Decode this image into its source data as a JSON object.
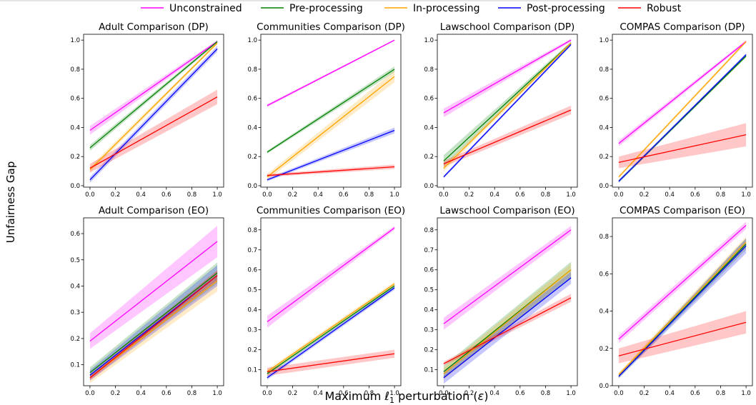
{
  "figure": {
    "ylabel": "Unfairness Gap",
    "xlabel_prefix": "Maximum ",
    "xlabel_symbol": "ℓ",
    "xlabel_sub": "1",
    "xlabel_suffix": " perturbation (",
    "xlabel_eps": "ε",
    "xlabel_close": ")"
  },
  "legend": [
    {
      "name": "Unconstrained",
      "color": "#ff00ff"
    },
    {
      "name": "Pre-processing",
      "color": "#008000"
    },
    {
      "name": "In-processing",
      "color": "#ffa500"
    },
    {
      "name": "Post-processing",
      "color": "#0000ff"
    },
    {
      "name": "Robust",
      "color": "#ff0000"
    }
  ],
  "chart_data": [
    {
      "type": "line",
      "title": "Adult Comparison (DP)",
      "x": [
        0,
        1
      ],
      "xlim": [
        -0.05,
        1.05
      ],
      "ylim": [
        -0.01,
        1.04
      ],
      "xticks": [
        "0.0",
        "0.2",
        "0.4",
        "0.6",
        "0.8",
        "1.0"
      ],
      "xtick_values": [
        0,
        0.2,
        0.4,
        0.6,
        0.8,
        1.0
      ],
      "yticks": [
        "0.0",
        "0.2",
        "0.4",
        "0.6",
        "0.8",
        "1.0"
      ],
      "ytick_values": [
        0,
        0.2,
        0.4,
        0.6,
        0.8,
        1.0
      ],
      "series": [
        {
          "name": "Unconstrained",
          "values": [
            0.38,
            0.99
          ],
          "band": [
            0.03,
            0.01
          ]
        },
        {
          "name": "Pre-processing",
          "values": [
            0.26,
            0.99
          ],
          "band": [
            0.02,
            0.01
          ]
        },
        {
          "name": "In-processing",
          "values": [
            0.11,
            0.98
          ],
          "band": [
            0.02,
            0.01
          ]
        },
        {
          "name": "Post-processing",
          "values": [
            0.04,
            0.94
          ],
          "band": [
            0.02,
            0.02
          ]
        },
        {
          "name": "Robust",
          "values": [
            0.12,
            0.61
          ],
          "band": [
            0.03,
            0.05
          ]
        }
      ]
    },
    {
      "type": "line",
      "title": "Communities Comparison (DP)",
      "x": [
        0,
        1
      ],
      "xlim": [
        -0.05,
        1.05
      ],
      "ylim": [
        -0.01,
        1.04
      ],
      "xticks": [
        "0.0",
        "0.2",
        "0.4",
        "0.6",
        "0.8",
        "1.0"
      ],
      "xtick_values": [
        0,
        0.2,
        0.4,
        0.6,
        0.8,
        1.0
      ],
      "yticks": [
        "0.0",
        "0.2",
        "0.4",
        "0.6",
        "0.8",
        "1.0"
      ],
      "ytick_values": [
        0,
        0.2,
        0.4,
        0.6,
        0.8,
        1.0
      ],
      "series": [
        {
          "name": "Unconstrained",
          "values": [
            0.55,
            1.0
          ],
          "band": [
            0.01,
            0.005
          ]
        },
        {
          "name": "Pre-processing",
          "values": [
            0.23,
            0.8
          ],
          "band": [
            0.01,
            0.02
          ]
        },
        {
          "name": "In-processing",
          "values": [
            0.06,
            0.75
          ],
          "band": [
            0.02,
            0.04
          ]
        },
        {
          "name": "Post-processing",
          "values": [
            0.04,
            0.38
          ],
          "band": [
            0.01,
            0.02
          ]
        },
        {
          "name": "Robust",
          "values": [
            0.07,
            0.13
          ],
          "band": [
            0.01,
            0.015
          ]
        }
      ]
    },
    {
      "type": "line",
      "title": "Lawschool Comparison (DP)",
      "x": [
        0,
        1
      ],
      "xlim": [
        -0.05,
        1.05
      ],
      "ylim": [
        -0.01,
        1.04
      ],
      "xticks": [
        "0.0",
        "0.2",
        "0.4",
        "0.6",
        "0.8",
        "1.0"
      ],
      "xtick_values": [
        0,
        0.2,
        0.4,
        0.6,
        0.8,
        1.0
      ],
      "yticks": [
        "0.0",
        "0.2",
        "0.4",
        "0.6",
        "0.8",
        "1.0"
      ],
      "ytick_values": [
        0,
        0.2,
        0.4,
        0.6,
        0.8,
        1.0
      ],
      "series": [
        {
          "name": "Unconstrained",
          "values": [
            0.5,
            1.0
          ],
          "band": [
            0.03,
            0.01
          ]
        },
        {
          "name": "Pre-processing",
          "values": [
            0.17,
            0.98
          ],
          "band": [
            0.04,
            0.01
          ]
        },
        {
          "name": "In-processing",
          "values": [
            0.12,
            0.98
          ],
          "band": [
            0.02,
            0.01
          ]
        },
        {
          "name": "Post-processing",
          "values": [
            0.06,
            0.97
          ],
          "band": [
            0.01,
            0.01
          ]
        },
        {
          "name": "Robust",
          "values": [
            0.15,
            0.52
          ],
          "band": [
            0.02,
            0.03
          ]
        }
      ]
    },
    {
      "type": "line",
      "title": "COMPAS Comparison (DP)",
      "x": [
        0,
        1
      ],
      "xlim": [
        -0.05,
        1.05
      ],
      "ylim": [
        -0.01,
        1.04
      ],
      "xticks": [
        "0.0",
        "0.2",
        "0.4",
        "0.6",
        "0.8",
        "1.0"
      ],
      "xtick_values": [
        0,
        0.2,
        0.4,
        0.6,
        0.8,
        1.0
      ],
      "yticks": [
        "0.0",
        "0.2",
        "0.4",
        "0.6",
        "0.8",
        "1.0"
      ],
      "ytick_values": [
        0,
        0.2,
        0.4,
        0.6,
        0.8,
        1.0
      ],
      "series": [
        {
          "name": "Unconstrained",
          "values": [
            0.29,
            0.99
          ],
          "band": [
            0.02,
            0.01
          ]
        },
        {
          "name": "Pre-processing",
          "values": [
            0.03,
            0.89
          ],
          "band": [
            0.01,
            0.01
          ]
        },
        {
          "name": "In-processing",
          "values": [
            0.06,
            0.99
          ],
          "band": [
            0.01,
            0.01
          ]
        },
        {
          "name": "Post-processing",
          "values": [
            0.03,
            0.9
          ],
          "band": [
            0.01,
            0.01
          ]
        },
        {
          "name": "Robust",
          "values": [
            0.16,
            0.35
          ],
          "band": [
            0.04,
            0.08
          ]
        }
      ]
    },
    {
      "type": "line",
      "title": "Adult Comparison (EO)",
      "x": [
        0,
        1
      ],
      "xlim": [
        -0.05,
        1.05
      ],
      "ylim": [
        0.02,
        0.66
      ],
      "xticks": [
        "0.0",
        "0.2",
        "0.4",
        "0.6",
        "0.8",
        "1.0"
      ],
      "xtick_values": [
        0,
        0.2,
        0.4,
        0.6,
        0.8,
        1.0
      ],
      "yticks": [
        "0.1",
        "0.2",
        "0.3",
        "0.4",
        "0.5",
        "0.6"
      ],
      "ytick_values": [
        0.1,
        0.2,
        0.3,
        0.4,
        0.5,
        0.6
      ],
      "series": [
        {
          "name": "Unconstrained",
          "values": [
            0.19,
            0.57
          ],
          "band": [
            0.03,
            0.06
          ]
        },
        {
          "name": "Pre-processing",
          "values": [
            0.07,
            0.45
          ],
          "band": [
            0.02,
            0.04
          ]
        },
        {
          "name": "In-processing",
          "values": [
            0.05,
            0.42
          ],
          "band": [
            0.02,
            0.04
          ]
        },
        {
          "name": "Post-processing",
          "values": [
            0.06,
            0.44
          ],
          "band": [
            0.02,
            0.04
          ]
        },
        {
          "name": "Robust",
          "values": [
            0.05,
            0.44
          ],
          "band": [
            0.01,
            0.02
          ]
        }
      ]
    },
    {
      "type": "line",
      "title": "Communities Comparison (EO)",
      "x": [
        0,
        1
      ],
      "xlim": [
        -0.05,
        1.05
      ],
      "ylim": [
        0.02,
        0.86
      ],
      "xticks": [
        "0.0",
        "0.2",
        "0.4",
        "0.6",
        "0.8",
        "1.0"
      ],
      "xtick_values": [
        0,
        0.2,
        0.4,
        0.6,
        0.8,
        1.0
      ],
      "yticks": [
        "0.1",
        "0.2",
        "0.3",
        "0.4",
        "0.5",
        "0.6",
        "0.7",
        "0.8"
      ],
      "ytick_values": [
        0.1,
        0.2,
        0.3,
        0.4,
        0.5,
        0.6,
        0.7,
        0.8
      ],
      "series": [
        {
          "name": "Unconstrained",
          "values": [
            0.34,
            0.81
          ],
          "band": [
            0.03,
            0.01
          ]
        },
        {
          "name": "Pre-processing",
          "values": [
            0.08,
            0.52
          ],
          "band": [
            0.01,
            0.01
          ]
        },
        {
          "name": "In-processing",
          "values": [
            0.09,
            0.53
          ],
          "band": [
            0.01,
            0.01
          ]
        },
        {
          "name": "Post-processing",
          "values": [
            0.06,
            0.51
          ],
          "band": [
            0.01,
            0.01
          ]
        },
        {
          "name": "Robust",
          "values": [
            0.09,
            0.18
          ],
          "band": [
            0.02,
            0.02
          ]
        }
      ]
    },
    {
      "type": "line",
      "title": "Lawschool Comparison (EO)",
      "x": [
        0,
        1
      ],
      "xlim": [
        -0.05,
        1.05
      ],
      "ylim": [
        0.02,
        0.86
      ],
      "xticks": [
        "0.0",
        "0.2",
        "0.4",
        "0.6",
        "0.8",
        "1.0"
      ],
      "xtick_values": [
        0,
        0.2,
        0.4,
        0.6,
        0.8,
        1.0
      ],
      "yticks": [
        "0.1",
        "0.2",
        "0.3",
        "0.4",
        "0.5",
        "0.6",
        "0.7",
        "0.8"
      ],
      "ytick_values": [
        0.1,
        0.2,
        0.3,
        0.4,
        0.5,
        0.6,
        0.7,
        0.8
      ],
      "series": [
        {
          "name": "Unconstrained",
          "values": [
            0.33,
            0.8
          ],
          "band": [
            0.03,
            0.02
          ]
        },
        {
          "name": "Pre-processing",
          "values": [
            0.09,
            0.6
          ],
          "band": [
            0.03,
            0.04
          ]
        },
        {
          "name": "In-processing",
          "values": [
            0.08,
            0.6
          ],
          "band": [
            0.03,
            0.03
          ]
        },
        {
          "name": "Post-processing",
          "values": [
            0.06,
            0.56
          ],
          "band": [
            0.03,
            0.03
          ]
        },
        {
          "name": "Robust",
          "values": [
            0.13,
            0.46
          ],
          "band": [
            0.01,
            0.02
          ]
        }
      ]
    },
    {
      "type": "line",
      "title": "COMPAS Comparison (EO)",
      "x": [
        0,
        1
      ],
      "xlim": [
        -0.05,
        1.05
      ],
      "ylim": [
        0.0,
        0.9
      ],
      "xticks": [
        "0.0",
        "0.2",
        "0.4",
        "0.6",
        "0.8",
        "1.0"
      ],
      "xtick_values": [
        0,
        0.2,
        0.4,
        0.6,
        0.8,
        1.0
      ],
      "yticks": [
        "0.0",
        "0.2",
        "0.4",
        "0.6",
        "0.8"
      ],
      "ytick_values": [
        0,
        0.2,
        0.4,
        0.6,
        0.8
      ],
      "series": [
        {
          "name": "Unconstrained",
          "values": [
            0.25,
            0.86
          ],
          "band": [
            0.02,
            0.02
          ]
        },
        {
          "name": "Pre-processing",
          "values": [
            0.05,
            0.76
          ],
          "band": [
            0.01,
            0.03
          ]
        },
        {
          "name": "In-processing",
          "values": [
            0.06,
            0.77
          ],
          "band": [
            0.01,
            0.03
          ]
        },
        {
          "name": "Post-processing",
          "values": [
            0.05,
            0.75
          ],
          "band": [
            0.01,
            0.04
          ]
        },
        {
          "name": "Robust",
          "values": [
            0.16,
            0.34
          ],
          "band": [
            0.04,
            0.06
          ]
        }
      ]
    }
  ]
}
